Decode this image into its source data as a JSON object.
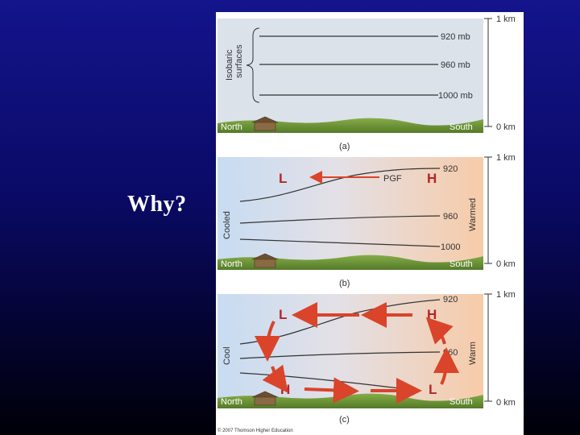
{
  "slide": {
    "question": "Why?"
  },
  "panels": {
    "a": {
      "label": "(a)",
      "isobaric_label_line1": "Isobaric",
      "isobaric_label_line2": "surfaces",
      "isobars": [
        "920 mb",
        "960 mb",
        "1000 mb"
      ],
      "left_ground": "North",
      "right_ground": "South"
    },
    "b": {
      "label": "(b)",
      "left_side": "Cooled",
      "right_side": "Warmed",
      "low": "L",
      "high": "H",
      "force": "PGF",
      "isobars": [
        "920",
        "960",
        "1000"
      ],
      "left_ground": "North",
      "right_ground": "South"
    },
    "c": {
      "label": "(c)",
      "left_side": "Cool",
      "right_side": "Warm",
      "upper_low": "L",
      "upper_high": "H",
      "lower_high": "H",
      "lower_low": "L",
      "isobars": [
        "920",
        "960"
      ],
      "left_ground": "North",
      "right_ground": "South"
    }
  },
  "scale": {
    "top": "1 km",
    "bottom": "0 km"
  },
  "copyright": "© 2007 Thomson Higher Education",
  "colors": {
    "cool": "#c9ddf2",
    "warm": "#f6cfae",
    "neutral_sky": "#d9e1ea",
    "ground": "#6f9a3a",
    "arrow_red": "#d9442a",
    "pressure_letter": "#b3262a"
  }
}
